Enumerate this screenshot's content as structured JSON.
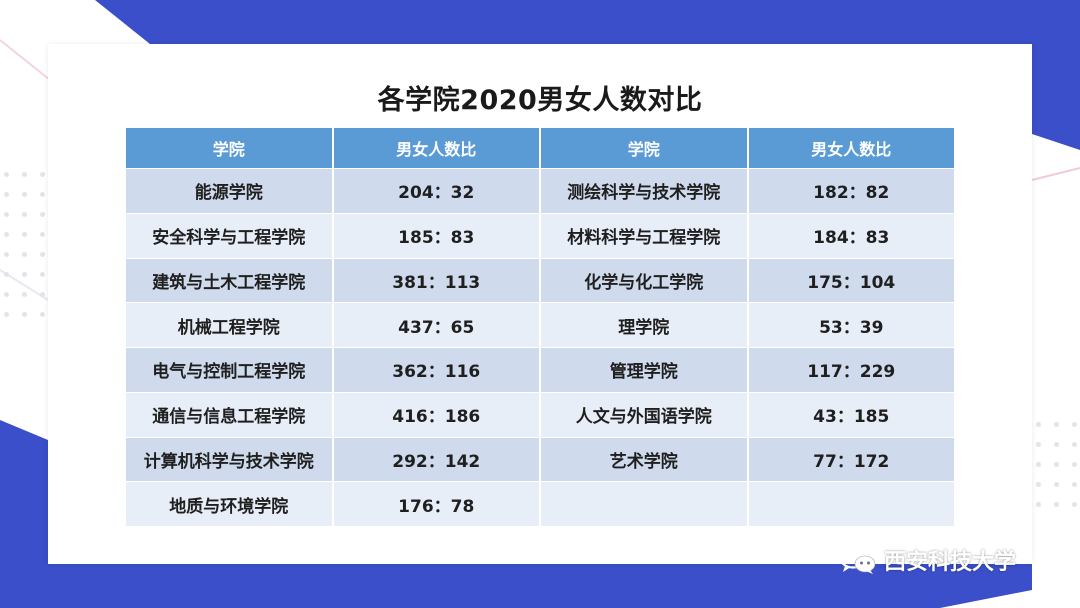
{
  "title": "各学院2020男女人数对比",
  "table": {
    "headers": [
      "学院",
      "男女人数比",
      "学院",
      "男女人数比"
    ],
    "rows": [
      [
        "能源学院",
        "204：32",
        "测绘科学与技术学院",
        "182：82"
      ],
      [
        "安全科学与工程学院",
        "185：83",
        "材料科学与工程学院",
        "184：83"
      ],
      [
        "建筑与土木工程学院",
        "381：113",
        "化学与化工学院",
        "175：104"
      ],
      [
        "机械工程学院",
        "437：65",
        "理学院",
        "53：39"
      ],
      [
        "电气与控制工程学院",
        "362：116",
        "管理学院",
        "117：229"
      ],
      [
        "通信与信息工程学院",
        "416：186",
        "人文与外国语学院",
        "43：185"
      ],
      [
        "计算机科学与技术学院",
        "292：142",
        "艺术学院",
        "77：172"
      ],
      [
        "地质与环境学院",
        "176：78",
        "",
        ""
      ]
    ]
  },
  "watermark": {
    "text": "西安科技大学",
    "icon": "wechat-icon"
  },
  "colors": {
    "accent": "#3a4fc9",
    "header": "#5b9bd5",
    "row_odd": "#cfdbed",
    "row_even": "#e8eef8"
  }
}
